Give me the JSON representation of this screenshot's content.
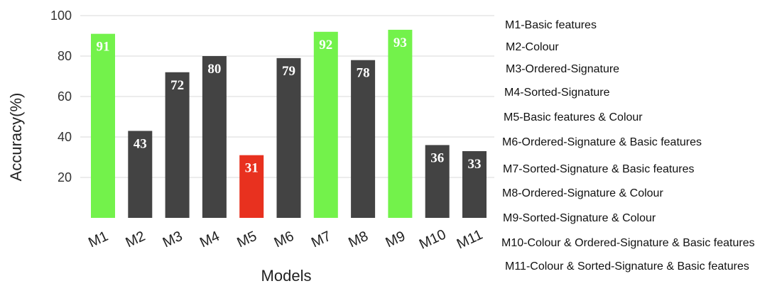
{
  "chart_data": {
    "type": "bar",
    "categories": [
      "M1",
      "M2",
      "M3",
      "M4",
      "M5",
      "M6",
      "M7",
      "M8",
      "M9",
      "M10",
      "M11"
    ],
    "values": [
      91,
      43,
      72,
      80,
      31,
      79,
      92,
      78,
      93,
      36,
      33
    ],
    "colors": [
      "#73f24b",
      "#434343",
      "#434343",
      "#434343",
      "#e8311f",
      "#434343",
      "#73f24b",
      "#434343",
      "#73f24b",
      "#434343",
      "#434343"
    ],
    "title": "",
    "xlabel": "Models",
    "ylabel": "Accuracy(%)",
    "ylim": [
      0,
      100
    ],
    "yticks": [
      20,
      40,
      60,
      80,
      100
    ],
    "grid": true,
    "legend_placement": "right",
    "legend_entries": [
      "M1-Basic features",
      "M2-Colour",
      "M3-Ordered-Signature",
      "M4-Sorted-Signature",
      "M5-Basic features & Colour",
      "M6-Ordered-Signature & Basic features",
      "M7-Sorted-Signature & Basic features",
      "M8-Ordered-Signature & Colour",
      "M9-Sorted-Signature & Colour",
      "M10-Colour & Ordered-Signature & Basic features",
      "M11-Colour & Sorted-Signature & Basic features"
    ]
  }
}
